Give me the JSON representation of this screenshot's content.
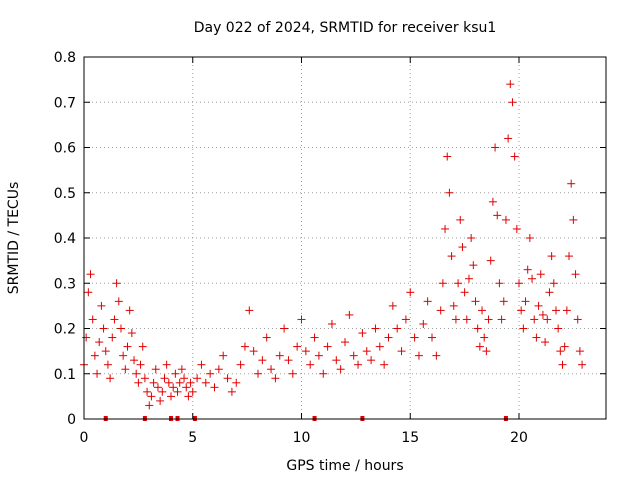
{
  "chart_data": {
    "type": "scatter",
    "title": "Day 022 of 2024, SRMTID for receiver ksu1",
    "xlabel": "GPS time / hours",
    "ylabel": "SRMTID / TECUs",
    "xlim": [
      0,
      24
    ],
    "ylim": [
      0,
      0.8
    ],
    "xticks": [
      0,
      5,
      10,
      15,
      20
    ],
    "yticks": [
      0,
      0.1,
      0.2,
      0.3,
      0.4,
      0.5,
      0.6,
      0.7,
      0.8
    ],
    "xtick_labels": [
      "0",
      "5",
      "10",
      "15",
      "20"
    ],
    "ytick_labels": [
      "0",
      "0.1",
      "0.2",
      "0.3",
      "0.4",
      "0.5",
      "0.6",
      "0.7",
      "0.8"
    ],
    "grid": true,
    "marker": "+",
    "color": "#e00000",
    "series": [
      {
        "name": "SRMTID",
        "x": [
          0.0,
          0.1,
          0.2,
          0.3,
          0.4,
          0.5,
          0.6,
          0.7,
          0.8,
          0.9,
          1.0,
          1.1,
          1.2,
          1.3,
          1.4,
          1.5,
          1.6,
          1.7,
          1.8,
          1.9,
          2.0,
          2.1,
          2.2,
          2.3,
          2.4,
          2.5,
          2.6,
          2.7,
          2.8,
          2.9,
          3.0,
          3.1,
          3.2,
          3.3,
          3.4,
          3.5,
          3.6,
          3.7,
          3.8,
          3.9,
          4.0,
          4.1,
          4.2,
          4.3,
          4.4,
          4.5,
          4.6,
          4.7,
          4.8,
          4.9,
          5.0,
          5.2,
          5.4,
          5.6,
          5.8,
          6.0,
          6.2,
          6.4,
          6.6,
          6.8,
          7.0,
          7.2,
          7.4,
          7.6,
          7.8,
          8.0,
          8.2,
          8.4,
          8.6,
          8.8,
          9.0,
          9.2,
          9.4,
          9.6,
          9.8,
          10.0,
          10.2,
          10.4,
          10.6,
          10.8,
          11.0,
          11.2,
          11.4,
          11.6,
          11.8,
          12.0,
          12.2,
          12.4,
          12.6,
          12.8,
          13.0,
          13.2,
          13.4,
          13.6,
          13.8,
          14.0,
          14.2,
          14.4,
          14.6,
          14.8,
          15.0,
          15.2,
          15.4,
          15.6,
          15.8,
          16.0,
          16.2,
          16.4,
          16.5,
          16.6,
          16.7,
          16.8,
          16.9,
          17.0,
          17.1,
          17.2,
          17.3,
          17.4,
          17.5,
          17.6,
          17.7,
          17.8,
          17.9,
          18.0,
          18.1,
          18.2,
          18.3,
          18.4,
          18.5,
          18.6,
          18.7,
          18.8,
          18.9,
          19.0,
          19.1,
          19.2,
          19.3,
          19.4,
          19.5,
          19.6,
          19.7,
          19.8,
          19.9,
          20.0,
          20.1,
          20.2,
          20.3,
          20.4,
          20.5,
          20.6,
          20.7,
          20.8,
          20.9,
          21.0,
          21.1,
          21.2,
          21.3,
          21.4,
          21.5,
          21.6,
          21.7,
          21.8,
          21.9,
          22.0,
          22.1,
          22.2,
          22.3,
          22.4,
          22.5,
          22.6,
          22.7,
          22.8,
          22.9
        ],
        "y": [
          0.12,
          0.18,
          0.28,
          0.32,
          0.22,
          0.14,
          0.1,
          0.17,
          0.25,
          0.2,
          0.15,
          0.12,
          0.09,
          0.18,
          0.22,
          0.3,
          0.26,
          0.2,
          0.14,
          0.11,
          0.16,
          0.24,
          0.19,
          0.13,
          0.1,
          0.08,
          0.12,
          0.16,
          0.09,
          0.06,
          0.03,
          0.05,
          0.08,
          0.11,
          0.07,
          0.04,
          0.06,
          0.09,
          0.12,
          0.08,
          0.05,
          0.07,
          0.1,
          0.06,
          0.08,
          0.11,
          0.09,
          0.07,
          0.05,
          0.08,
          0.06,
          0.09,
          0.12,
          0.08,
          0.1,
          0.07,
          0.11,
          0.14,
          0.09,
          0.06,
          0.08,
          0.12,
          0.16,
          0.24,
          0.15,
          0.1,
          0.13,
          0.18,
          0.11,
          0.09,
          0.14,
          0.2,
          0.13,
          0.1,
          0.16,
          0.22,
          0.15,
          0.12,
          0.18,
          0.14,
          0.1,
          0.16,
          0.21,
          0.13,
          0.11,
          0.17,
          0.23,
          0.14,
          0.12,
          0.19,
          0.15,
          0.13,
          0.2,
          0.16,
          0.12,
          0.18,
          0.25,
          0.2,
          0.15,
          0.22,
          0.28,
          0.18,
          0.14,
          0.21,
          0.26,
          0.18,
          0.14,
          0.24,
          0.3,
          0.42,
          0.58,
          0.5,
          0.36,
          0.25,
          0.22,
          0.3,
          0.44,
          0.38,
          0.28,
          0.22,
          0.31,
          0.4,
          0.34,
          0.26,
          0.2,
          0.16,
          0.24,
          0.18,
          0.15,
          0.22,
          0.35,
          0.48,
          0.6,
          0.45,
          0.3,
          0.22,
          0.26,
          0.44,
          0.62,
          0.74,
          0.7,
          0.58,
          0.42,
          0.3,
          0.24,
          0.2,
          0.26,
          0.33,
          0.4,
          0.31,
          0.22,
          0.18,
          0.25,
          0.32,
          0.23,
          0.17,
          0.22,
          0.28,
          0.36,
          0.3,
          0.24,
          0.2,
          0.15,
          0.12,
          0.16,
          0.24,
          0.36,
          0.52,
          0.44,
          0.32,
          0.22,
          0.15,
          0.12
        ]
      }
    ],
    "zero_markers_x": [
      1.0,
      2.8,
      4.0,
      4.3,
      5.1,
      10.6,
      12.8,
      19.4
    ]
  }
}
